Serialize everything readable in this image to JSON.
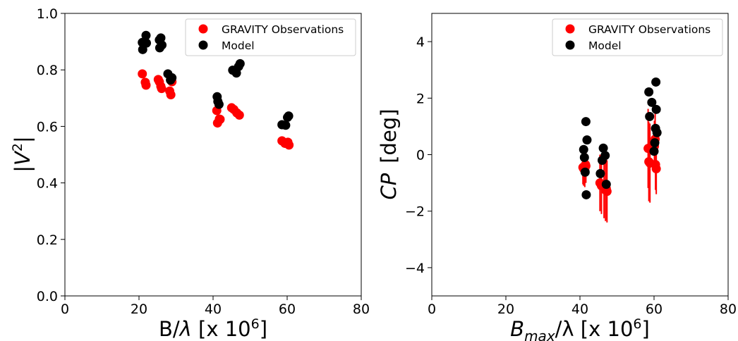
{
  "colors": {
    "observations": "#ff0000",
    "model": "#000000",
    "error_bar": "#ff0000"
  },
  "chart_data": [
    {
      "type": "scatter",
      "xlim": [
        0,
        80
      ],
      "ylim": [
        0.0,
        1.0
      ],
      "xticks": [
        "0",
        "20",
        "40",
        "60",
        "80"
      ],
      "yticks": [
        "0.0",
        "0.2",
        "0.4",
        "0.6",
        "0.8",
        "1.0"
      ],
      "xlabel": "B/λ [x 10⁶]",
      "ylabel": "|V²|",
      "legend_position": "top-right",
      "grid": false,
      "series": [
        {
          "name": "GRAVITY Observations",
          "color": "#ff0000",
          "x": [
            20.9,
            21.7,
            21.9,
            25.2,
            25.5,
            25.9,
            26.1,
            28.3,
            28.6,
            28.9,
            41.0,
            41.2,
            41.7,
            41.9,
            45.0,
            45.6,
            46.4,
            47.1,
            58.6,
            59.4,
            60.2,
            60.5
          ],
          "y": [
            0.786,
            0.756,
            0.746,
            0.766,
            0.758,
            0.742,
            0.734,
            0.725,
            0.712,
            0.758,
            0.656,
            0.612,
            0.626,
            0.625,
            0.666,
            0.66,
            0.648,
            0.64,
            0.549,
            0.54,
            0.544,
            0.534
          ],
          "yerr": [
            0.012,
            0.012,
            0.012,
            0.014,
            0.014,
            0.014,
            0.014,
            0.012,
            0.012,
            0.012,
            0.012,
            0.012,
            0.012,
            0.012,
            0.01,
            0.01,
            0.01,
            0.01,
            0.012,
            0.012,
            0.012,
            0.012
          ]
        },
        {
          "name": "Model",
          "color": "#000000",
          "x": [
            20.9,
            21.0,
            21.9,
            22.0,
            25.5,
            25.6,
            25.9,
            26.2,
            27.8,
            28.5,
            28.9,
            41.1,
            41.3,
            41.6,
            45.3,
            46.3,
            46.9,
            47.3,
            58.6,
            59.6,
            60.1,
            60.4
          ],
          "y": [
            0.897,
            0.872,
            0.922,
            0.895,
            0.906,
            0.878,
            0.913,
            0.888,
            0.786,
            0.764,
            0.772,
            0.705,
            0.688,
            0.678,
            0.799,
            0.789,
            0.812,
            0.822,
            0.606,
            0.604,
            0.632,
            0.637
          ]
        }
      ]
    },
    {
      "type": "scatter",
      "xlim": [
        0,
        80
      ],
      "ylim": [
        -5,
        5
      ],
      "xticks": [
        "0",
        "20",
        "40",
        "60",
        "80"
      ],
      "yticks": [
        "−4",
        "−2",
        "0",
        "2",
        "4"
      ],
      "xlabel_main": "B",
      "xlabel_sub": "max",
      "xlabel_rest": "/λ [x 10",
      "xlabel_sup": "6",
      "xlabel_end": "]",
      "ylabel_main": "CP",
      "ylabel_rest": "[deg]",
      "legend_position": "top-right",
      "grid": false,
      "series": [
        {
          "name": "GRAVITY Observations",
          "color": "#ff0000",
          "x": [
            40.8,
            41.0,
            41.3,
            41.5,
            41.6,
            45.4,
            45.8,
            46.5,
            46.9,
            47.1,
            47.3,
            58.4,
            58.6,
            58.9,
            60.1,
            60.3,
            60.4,
            60.6
          ],
          "y": [
            -0.45,
            -0.5,
            -0.55,
            -0.35,
            -0.4,
            -1.0,
            -1.1,
            -1.15,
            -1.25,
            -1.2,
            -1.3,
            0.22,
            -0.25,
            -0.3,
            0.3,
            0.55,
            -0.35,
            -0.5
          ],
          "yerr": [
            0.6,
            0.6,
            0.6,
            0.6,
            0.6,
            1.0,
            1.0,
            1.1,
            1.1,
            1.1,
            1.1,
            1.4,
            1.4,
            1.4,
            0.9,
            0.9,
            0.9,
            0.9
          ]
        },
        {
          "name": "Model",
          "color": "#000000",
          "x": [
            41.0,
            41.2,
            41.4,
            41.6,
            41.7,
            41.9,
            45.5,
            46.0,
            46.3,
            46.8,
            47.1,
            58.6,
            58.8,
            59.4,
            60.0,
            60.2,
            60.4,
            60.5,
            60.6,
            60.8
          ],
          "y": [
            0.18,
            -0.1,
            -0.62,
            1.17,
            -1.42,
            0.52,
            -0.67,
            -0.2,
            0.23,
            -0.03,
            -1.05,
            2.22,
            1.35,
            1.85,
            0.12,
            0.42,
            0.93,
            2.57,
            1.6,
            0.78
          ]
        }
      ]
    }
  ]
}
